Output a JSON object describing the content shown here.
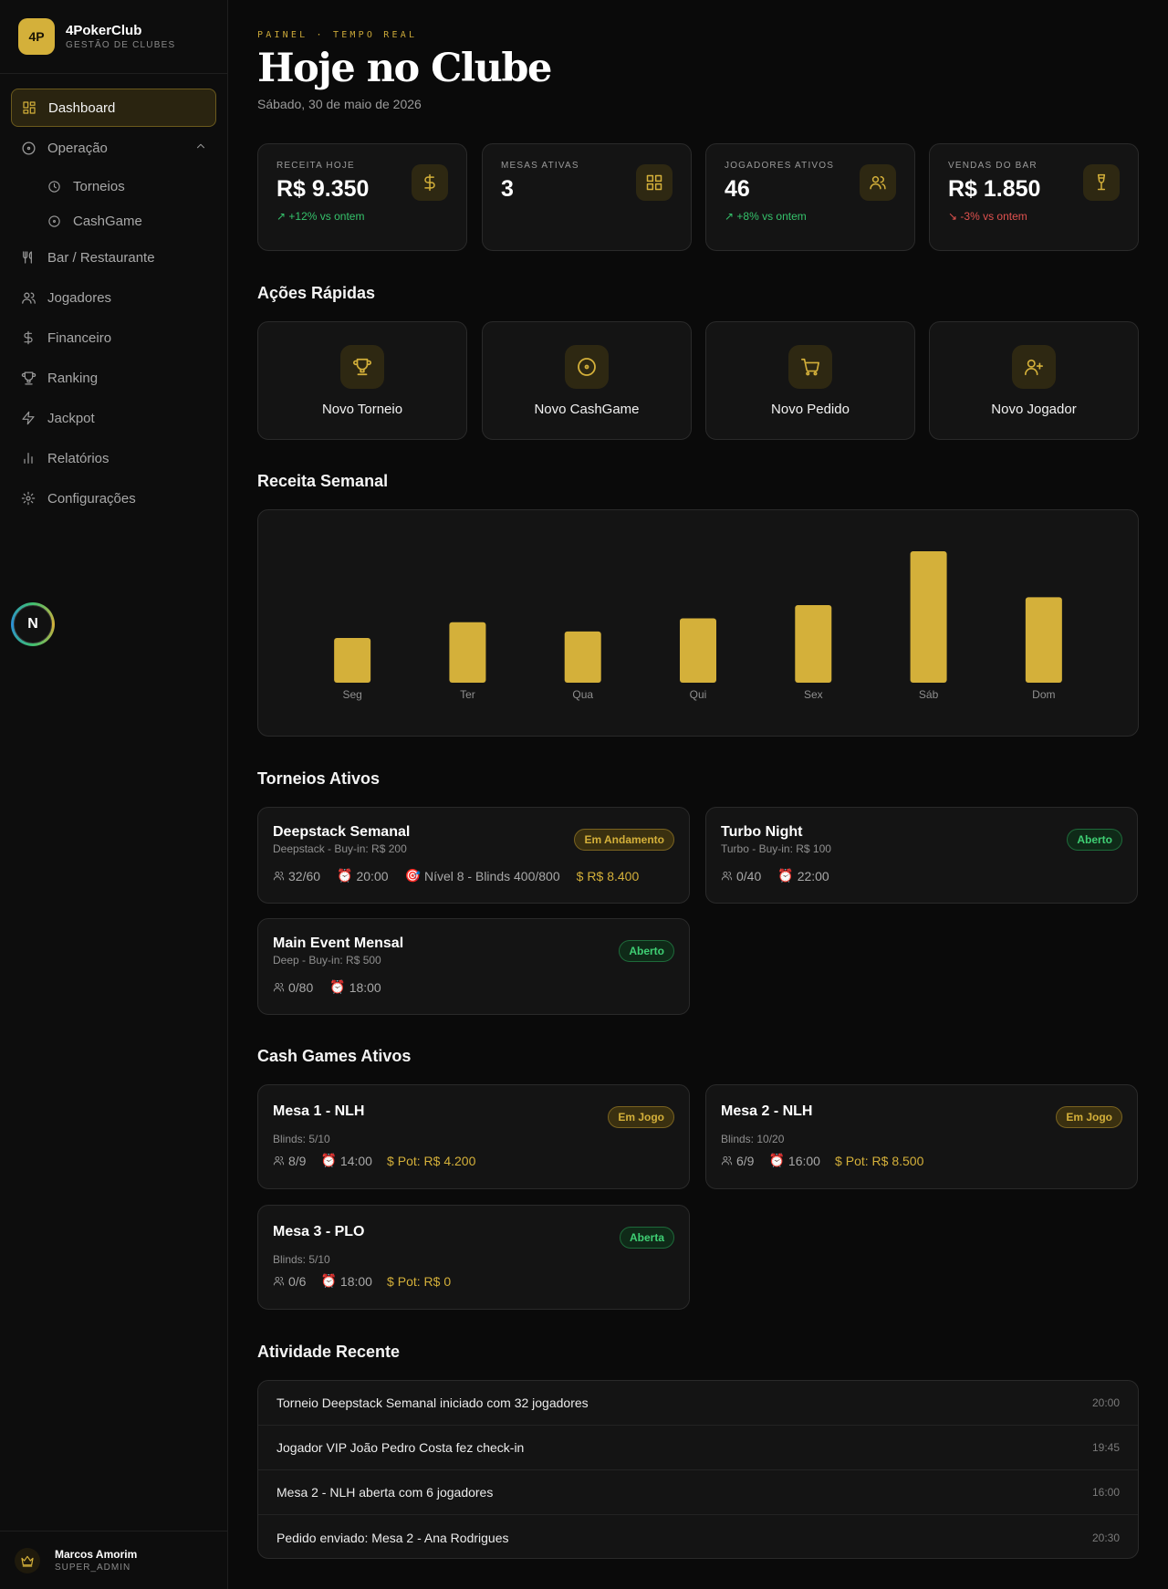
{
  "brand": {
    "logo": "4P",
    "name": "4PokerClub",
    "subtitle": "GESTÃO DE CLUBES"
  },
  "sidebar": {
    "items": [
      {
        "label": "Dashboard",
        "icon": "dashboard-icon",
        "active": true
      },
      {
        "label": "Operação",
        "icon": "operacao-icon",
        "expanded": true
      },
      {
        "label": "Torneios",
        "icon": "clock-icon",
        "sub": true
      },
      {
        "label": "CashGame",
        "icon": "target-icon",
        "sub": true
      },
      {
        "label": "Bar / Restaurante",
        "icon": "utensils-icon"
      },
      {
        "label": "Jogadores",
        "icon": "users-icon"
      },
      {
        "label": "Financeiro",
        "icon": "dollar-icon"
      },
      {
        "label": "Ranking",
        "icon": "trophy-icon"
      },
      {
        "label": "Jackpot",
        "icon": "zap-icon"
      },
      {
        "label": "Relatórios",
        "icon": "bar-chart-icon"
      },
      {
        "label": "Configurações",
        "icon": "gear-icon"
      }
    ],
    "floating_badge": "N"
  },
  "user": {
    "name": "Marcos Amorim",
    "role": "SUPER_ADMIN"
  },
  "header": {
    "eyebrow": "PAINEL · TEMPO REAL",
    "title": "Hoje no Clube",
    "date": "Sábado, 30 de maio de 2026"
  },
  "stats": [
    {
      "label": "RECEITA HOJE",
      "value": "R$ 9.350",
      "change": "+12% vs ontem",
      "trend": "up",
      "icon": "dollar-icon"
    },
    {
      "label": "MESAS ATIVAS",
      "value": "3",
      "change": "",
      "trend": "",
      "icon": "grid-icon"
    },
    {
      "label": "JOGADORES ATIVOS",
      "value": "46",
      "change": "+8% vs ontem",
      "trend": "up",
      "icon": "users-icon"
    },
    {
      "label": "VENDAS DO BAR",
      "value": "R$ 1.850",
      "change": "-3% vs ontem",
      "trend": "down",
      "icon": "wine-icon"
    }
  ],
  "quick_actions": {
    "title": "Ações Rápidas",
    "items": [
      {
        "label": "Novo Torneio",
        "icon": "trophy-icon"
      },
      {
        "label": "Novo CashGame",
        "icon": "target-icon"
      },
      {
        "label": "Novo Pedido",
        "icon": "cart-icon"
      },
      {
        "label": "Novo Jogador",
        "icon": "user-plus-icon"
      }
    ]
  },
  "weekly_revenue": {
    "title": "Receita Semanal"
  },
  "chart_data": {
    "type": "bar",
    "categories": [
      "Seg",
      "Ter",
      "Qua",
      "Qui",
      "Sex",
      "Sáb",
      "Dom"
    ],
    "values": [
      3.4,
      4.6,
      3.9,
      4.9,
      5.9,
      10.0,
      6.5
    ],
    "ylim": [
      0,
      10
    ],
    "grid": false,
    "bar_color": "#d4b03a"
  },
  "tournaments": {
    "title": "Torneios Ativos",
    "items": [
      {
        "name": "Deepstack Semanal",
        "sub": "Deepstack - Buy-in: R$ 200",
        "status": "Em Andamento",
        "status_color": "gold",
        "players": "32/60",
        "time": "20:00",
        "level": "Nível 8 - Blinds 400/800",
        "prize": "R$ 8.400"
      },
      {
        "name": "Turbo Night",
        "sub": "Turbo - Buy-in: R$ 100",
        "status": "Aberto",
        "status_color": "green",
        "players": "0/40",
        "time": "22:00"
      },
      {
        "name": "Main Event Mensal",
        "sub": "Deep - Buy-in: R$ 500",
        "status": "Aberto",
        "status_color": "green",
        "players": "0/80",
        "time": "18:00"
      }
    ]
  },
  "cash_games": {
    "title": "Cash Games Ativos",
    "items": [
      {
        "name": "Mesa 1 - NLH",
        "status": "Em Jogo",
        "status_color": "gold",
        "blinds": "Blinds: 5/10",
        "players": "8/9",
        "time": "14:00",
        "pot": "Pot: R$ 4.200"
      },
      {
        "name": "Mesa 2 - NLH",
        "status": "Em Jogo",
        "status_color": "gold",
        "blinds": "Blinds: 10/20",
        "players": "6/9",
        "time": "16:00",
        "pot": "Pot: R$ 8.500"
      },
      {
        "name": "Mesa 3 - PLO",
        "status": "Aberta",
        "status_color": "green",
        "blinds": "Blinds: 5/10",
        "players": "0/6",
        "time": "18:00",
        "pot": "Pot: R$ 0"
      }
    ]
  },
  "activity": {
    "title": "Atividade Recente",
    "items": [
      {
        "text": "Torneio Deepstack Semanal iniciado com 32 jogadores",
        "time": "20:00"
      },
      {
        "text": "Jogador VIP João Pedro Costa fez check-in",
        "time": "19:45"
      },
      {
        "text": "Mesa 2 - NLH aberta com 6 jogadores",
        "time": "16:00"
      },
      {
        "text": "Pedido enviado: Mesa 2 - Ana Rodrigues",
        "time": "20:30"
      }
    ]
  }
}
